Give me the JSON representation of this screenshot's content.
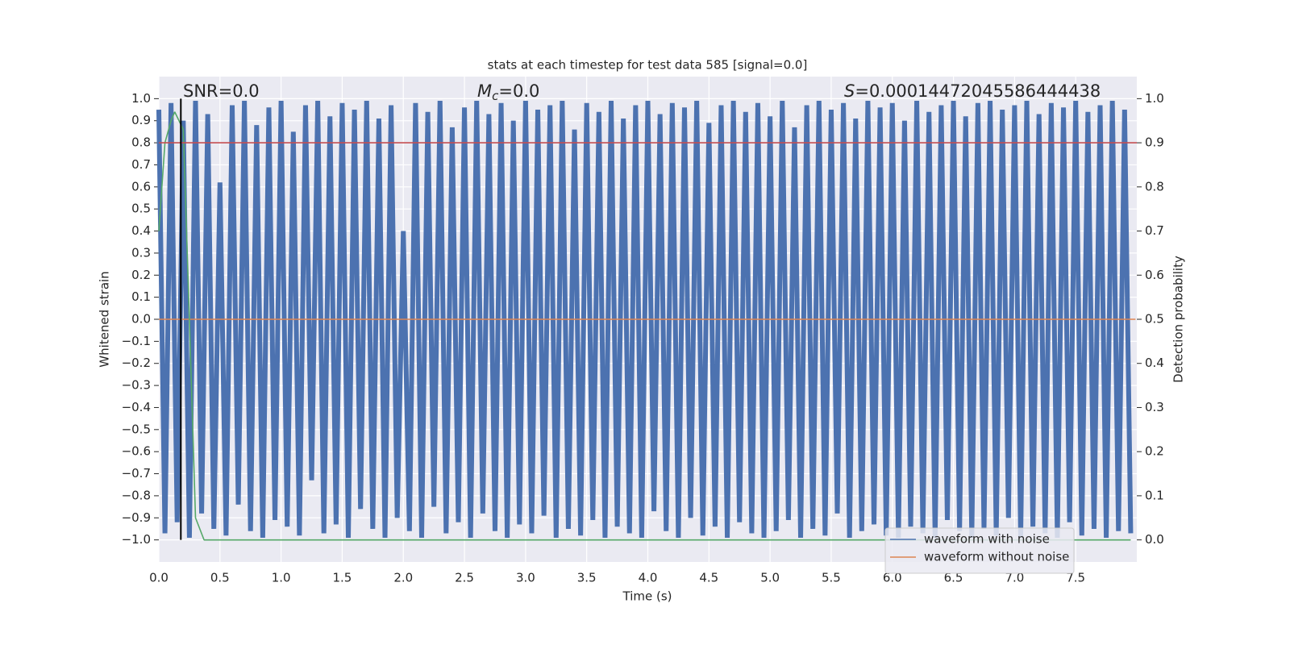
{
  "chart_data": {
    "type": "line",
    "title": "stats at each timestep for test data 585 [signal=0.0]",
    "xlabel": "Time (s)",
    "ylabel": "Whitened strain",
    "y2label": "Detection probability",
    "annotations": [
      "SNR=0.0",
      {
        "symbol": "M",
        "sub": "c",
        "rest": "=0.0"
      },
      {
        "symbol": "S",
        "rest": "=0.00014472045586444438"
      }
    ],
    "xlim": [
      0,
      8
    ],
    "ylim": [
      -1.1,
      1.1
    ],
    "y2lim": [
      -0.05,
      1.05
    ],
    "xticks": [
      {
        "value": 0,
        "label": "0.0"
      },
      {
        "value": 0.5,
        "label": "0.5"
      },
      {
        "value": 1,
        "label": "1.0"
      },
      {
        "value": 1.5,
        "label": "1.5"
      },
      {
        "value": 2,
        "label": "2.0"
      },
      {
        "value": 2.5,
        "label": "2.5"
      },
      {
        "value": 3,
        "label": "3.0"
      },
      {
        "value": 3.5,
        "label": "3.5"
      },
      {
        "value": 4,
        "label": "4.0"
      },
      {
        "value": 4.5,
        "label": "4.5"
      },
      {
        "value": 5,
        "label": "5.0"
      },
      {
        "value": 5.5,
        "label": "5.5"
      },
      {
        "value": 6,
        "label": "6.0"
      },
      {
        "value": 6.5,
        "label": "6.5"
      },
      {
        "value": 7,
        "label": "7.0"
      },
      {
        "value": 7.5,
        "label": "7.5"
      }
    ],
    "yticks": [
      {
        "value": -1,
        "label": "−1.0"
      },
      {
        "value": -0.9,
        "label": "−0.9"
      },
      {
        "value": -0.8,
        "label": "−0.8"
      },
      {
        "value": -0.7,
        "label": "−0.7"
      },
      {
        "value": -0.6,
        "label": "−0.6"
      },
      {
        "value": -0.5,
        "label": "−0.5"
      },
      {
        "value": -0.4,
        "label": "−0.4"
      },
      {
        "value": -0.3,
        "label": "−0.3"
      },
      {
        "value": -0.2,
        "label": "−0.2"
      },
      {
        "value": -0.1,
        "label": "−0.1"
      },
      {
        "value": 0,
        "label": "0.0"
      },
      {
        "value": 0.1,
        "label": "0.1"
      },
      {
        "value": 0.2,
        "label": "0.2"
      },
      {
        "value": 0.3,
        "label": "0.3"
      },
      {
        "value": 0.4,
        "label": "0.4"
      },
      {
        "value": 0.5,
        "label": "0.5"
      },
      {
        "value": 0.6,
        "label": "0.6"
      },
      {
        "value": 0.7,
        "label": "0.7"
      },
      {
        "value": 0.8,
        "label": "0.8"
      },
      {
        "value": 0.9,
        "label": "0.9"
      },
      {
        "value": 1,
        "label": "1.0"
      }
    ],
    "y2ticks": [
      {
        "value": 0,
        "label": "0.0"
      },
      {
        "value": 0.1,
        "label": "0.1"
      },
      {
        "value": 0.2,
        "label": "0.2"
      },
      {
        "value": 0.3,
        "label": "0.3"
      },
      {
        "value": 0.4,
        "label": "0.4"
      },
      {
        "value": 0.5,
        "label": "0.5"
      },
      {
        "value": 0.6,
        "label": "0.6"
      },
      {
        "value": 0.7,
        "label": "0.7"
      },
      {
        "value": 0.8,
        "label": "0.8"
      },
      {
        "value": 0.9,
        "label": "0.9"
      },
      {
        "value": 1,
        "label": "1.0"
      }
    ],
    "grid": true,
    "legend": "lower right",
    "series": [
      {
        "name": "waveform with noise",
        "color": "#4c72b0",
        "x": [
          0,
          0.05,
          0.1,
          0.15,
          0.2,
          0.25,
          0.3,
          0.35,
          0.4,
          0.45,
          0.5,
          0.55,
          0.6,
          0.65,
          0.7,
          0.75,
          0.8,
          0.85,
          0.9,
          0.95,
          1,
          1.05,
          1.1,
          1.15,
          1.2,
          1.25,
          1.3,
          1.35,
          1.4,
          1.45,
          1.5,
          1.55,
          1.6,
          1.65,
          1.7,
          1.75,
          1.8,
          1.85,
          1.9,
          1.95,
          2,
          2.05,
          2.1,
          2.15,
          2.2,
          2.25,
          2.3,
          2.35,
          2.4,
          2.45,
          2.5,
          2.55,
          2.6,
          2.65,
          2.7,
          2.75,
          2.8,
          2.85,
          2.9,
          2.95,
          3,
          3.05,
          3.1,
          3.15,
          3.2,
          3.25,
          3.3,
          3.35,
          3.4,
          3.45,
          3.5,
          3.55,
          3.6,
          3.65,
          3.7,
          3.75,
          3.8,
          3.85,
          3.9,
          3.95,
          4,
          4.05,
          4.1,
          4.15,
          4.2,
          4.25,
          4.3,
          4.35,
          4.4,
          4.45,
          4.5,
          4.55,
          4.6,
          4.65,
          4.7,
          4.75,
          4.8,
          4.85,
          4.9,
          4.95,
          5,
          5.05,
          5.1,
          5.15,
          5.2,
          5.25,
          5.3,
          5.35,
          5.4,
          5.45,
          5.5,
          5.55,
          5.6,
          5.65,
          5.7,
          5.75,
          5.8,
          5.85,
          5.9,
          5.95,
          6,
          6.05,
          6.1,
          6.15,
          6.2,
          6.25,
          6.3,
          6.35,
          6.4,
          6.45,
          6.5,
          6.55,
          6.6,
          6.65,
          6.7,
          6.75,
          6.8,
          6.85,
          6.9,
          6.95,
          7,
          7.05,
          7.1,
          7.15,
          7.2,
          7.25,
          7.3,
          7.35,
          7.4,
          7.45,
          7.5,
          7.55,
          7.6,
          7.65,
          7.7,
          7.75,
          7.8,
          7.85,
          7.9,
          7.95
        ],
        "values": [
          0.95,
          -0.97,
          0.98,
          -0.92,
          0.9,
          -0.99,
          0.99,
          -0.88,
          0.93,
          -0.95,
          0.62,
          -0.98,
          0.97,
          -0.84,
          0.99,
          -0.96,
          0.88,
          -0.99,
          0.96,
          -0.91,
          0.99,
          -0.94,
          0.85,
          -0.98,
          0.97,
          -0.73,
          0.99,
          -0.97,
          0.92,
          -0.93,
          0.98,
          -0.99,
          0.95,
          -0.86,
          0.99,
          -0.95,
          0.91,
          -0.99,
          0.97,
          -0.9,
          0.4,
          -0.96,
          0.98,
          -0.99,
          0.94,
          -0.85,
          0.99,
          -0.97,
          0.87,
          -0.92,
          0.96,
          -0.99,
          0.99,
          -0.88,
          0.93,
          -0.96,
          0.98,
          -0.99,
          0.9,
          -0.93,
          0.99,
          -0.97,
          0.95,
          -0.89,
          0.97,
          -0.99,
          0.99,
          -0.95,
          0.86,
          -0.98,
          0.98,
          -0.91,
          0.94,
          -0.99,
          0.99,
          -0.94,
          0.91,
          -0.97,
          0.97,
          -0.99,
          0.99,
          -0.87,
          0.93,
          -0.96,
          0.98,
          -0.99,
          0.96,
          -0.9,
          0.99,
          -0.98,
          0.89,
          -0.94,
          0.97,
          -0.99,
          0.99,
          -0.92,
          0.94,
          -0.97,
          0.98,
          -0.99,
          0.92,
          -0.96,
          0.99,
          -0.91,
          0.87,
          -0.99,
          0.97,
          -0.95,
          0.99,
          -0.98,
          0.95,
          -0.88,
          0.98,
          -0.99,
          0.91,
          -0.96,
          0.99,
          -0.93,
          0.96,
          -0.98,
          0.98,
          -0.99,
          0.9,
          -0.94,
          0.99,
          -0.97,
          0.94,
          -0.99,
          0.97,
          -0.91,
          0.99,
          -0.96,
          0.92,
          -0.99,
          0.98,
          -0.95,
          0.99,
          -0.98,
          0.95,
          -0.9,
          0.97,
          -0.99,
          0.99,
          -0.94,
          0.93,
          -0.97,
          0.98,
          -0.99,
          0.96,
          -0.92,
          0.99,
          -0.98,
          0.94,
          -0.95,
          0.97,
          -0.99,
          0.99,
          -0.96,
          0.95,
          -0.97
        ]
      },
      {
        "name": "waveform without noise",
        "color": "#dd8452",
        "x": [
          0,
          7.99
        ],
        "values": [
          0,
          0
        ]
      },
      {
        "color": "#55a868",
        "axis": "y2",
        "x": [
          0,
          0.05,
          0.1,
          0.13,
          0.2,
          0.25,
          0.3,
          0.37,
          7.95
        ],
        "values": [
          0.7,
          0.9,
          0.95,
          0.97,
          0.93,
          0.5,
          0.05,
          0,
          0
        ]
      }
    ],
    "hline": {
      "value": 0.9,
      "axis": "y2",
      "color": "#c44e52"
    },
    "vline": {
      "x": 0.18,
      "ymin": -1,
      "ymax": 1,
      "color": "#000000"
    }
  }
}
